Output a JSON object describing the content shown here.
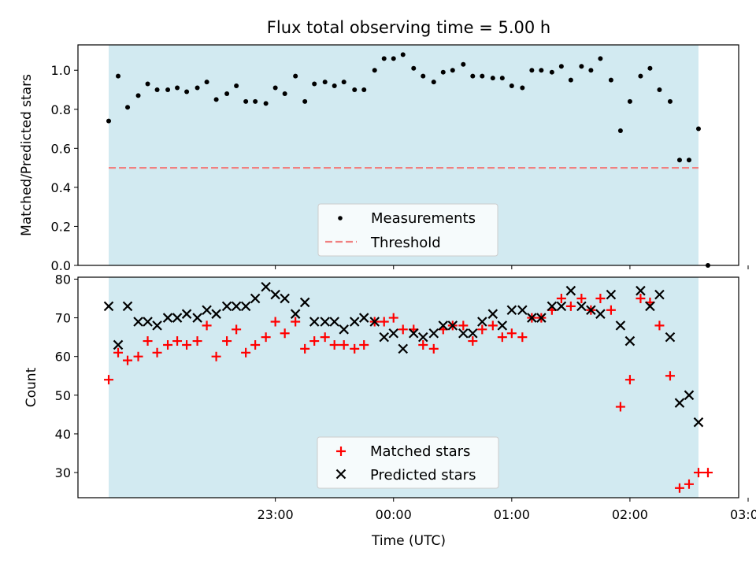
{
  "chart_data": [
    {
      "type": "scatter",
      "panel": "top",
      "title": "Flux total observing time = 5.00 h",
      "ylabel": "Matched/Predicted stars",
      "xlabel": "",
      "ylim": [
        0.0,
        1.13
      ],
      "yticks": [
        0.0,
        0.2,
        0.4,
        0.6,
        0.8,
        1.0
      ],
      "ytick_labels": [
        "0.0",
        "0.2",
        "0.4",
        "0.6",
        "0.8",
        "1.0"
      ],
      "xlim_hours": [
        -1.67,
        3.92
      ],
      "xticks_hours": [
        0,
        1,
        2,
        3,
        4,
        5
      ],
      "observing_window_hours": [
        -1.41,
        3.58
      ],
      "window_color": "#add8e6",
      "legend_position": "lower center",
      "series": [
        {
          "name": "Measurements",
          "marker": "dot",
          "color": "#000000",
          "x": [
            -1.41,
            -1.33,
            -1.25,
            -1.16,
            -1.08,
            -1.0,
            -0.91,
            -0.83,
            -0.75,
            -0.66,
            -0.58,
            -0.5,
            -0.41,
            -0.33,
            -0.25,
            -0.17,
            -0.08,
            0.0,
            0.08,
            0.17,
            0.25,
            0.33,
            0.42,
            0.5,
            0.58,
            0.67,
            0.75,
            0.84,
            0.92,
            1.0,
            1.08,
            1.17,
            1.25,
            1.34,
            1.42,
            1.5,
            1.59,
            1.67,
            1.75,
            1.84,
            1.92,
            2.0,
            2.09,
            2.17,
            2.25,
            2.34,
            2.42,
            2.5,
            2.59,
            2.67,
            2.75,
            2.84,
            2.92,
            3.0,
            3.09,
            3.17,
            3.25,
            3.34,
            3.42,
            3.5,
            3.58,
            3.66
          ],
          "y": [
            0.74,
            0.97,
            0.81,
            0.87,
            0.93,
            0.9,
            0.9,
            0.91,
            0.89,
            0.91,
            0.94,
            0.85,
            0.88,
            0.92,
            0.84,
            0.84,
            0.83,
            0.91,
            0.88,
            0.97,
            0.84,
            0.93,
            0.94,
            0.92,
            0.94,
            0.9,
            0.9,
            1.0,
            1.06,
            1.06,
            1.08,
            1.01,
            0.97,
            0.94,
            0.99,
            1.0,
            1.03,
            0.97,
            0.97,
            0.96,
            0.96,
            0.92,
            0.91,
            1.0,
            1.0,
            0.99,
            1.02,
            0.95,
            1.02,
            1.0,
            1.06,
            0.95,
            0.69,
            0.84,
            0.97,
            1.01,
            0.9,
            0.84,
            0.54,
            0.54,
            0.7,
            0.0
          ]
        },
        {
          "name": "Threshold",
          "type": "line",
          "style": "dashed",
          "color": "#f08080",
          "x": [
            -1.41,
            3.58
          ],
          "y": [
            0.5,
            0.5
          ]
        }
      ]
    },
    {
      "type": "scatter",
      "panel": "bottom",
      "ylabel": "Count",
      "xlabel": "Time (UTC)",
      "ylim": [
        23.5,
        80.5
      ],
      "yticks": [
        30,
        40,
        50,
        60,
        70,
        80
      ],
      "ytick_labels": [
        "30",
        "40",
        "50",
        "60",
        "70",
        "80"
      ],
      "xlim_hours": [
        -1.67,
        3.92
      ],
      "xticks_hours": [
        0,
        1,
        2,
        3,
        4,
        5
      ],
      "xtick_labels": [
        "23:00",
        "00:00",
        "01:00",
        "02:00",
        "03:00"
      ],
      "xtick_labels_hours": [
        0,
        1,
        2,
        3,
        4
      ],
      "observing_window_hours": [
        -1.41,
        3.58
      ],
      "window_color": "#add8e6",
      "legend_position": "lower center",
      "series": [
        {
          "name": "Matched stars",
          "marker": "plus",
          "color": "#ff0000",
          "x": [
            -1.41,
            -1.33,
            -1.25,
            -1.16,
            -1.08,
            -1.0,
            -0.91,
            -0.83,
            -0.75,
            -0.66,
            -0.58,
            -0.5,
            -0.41,
            -0.33,
            -0.25,
            -0.17,
            -0.08,
            0.0,
            0.08,
            0.17,
            0.25,
            0.33,
            0.42,
            0.5,
            0.58,
            0.67,
            0.75,
            0.84,
            0.92,
            1.0,
            1.08,
            1.17,
            1.25,
            1.34,
            1.42,
            1.5,
            1.59,
            1.67,
            1.75,
            1.84,
            1.92,
            2.0,
            2.09,
            2.17,
            2.25,
            2.34,
            2.42,
            2.5,
            2.59,
            2.67,
            2.75,
            2.84,
            2.92,
            3.0,
            3.09,
            3.17,
            3.25,
            3.34,
            3.42,
            3.5,
            3.58,
            3.66
          ],
          "y": [
            54,
            61,
            59,
            60,
            64,
            61,
            63,
            64,
            63,
            64,
            68,
            60,
            64,
            67,
            61,
            63,
            65,
            69,
            66,
            69,
            62,
            64,
            65,
            63,
            63,
            62,
            63,
            69,
            69,
            70,
            67,
            67,
            63,
            62,
            67,
            68,
            68,
            64,
            67,
            68,
            65,
            66,
            65,
            70,
            70,
            72,
            75,
            73,
            75,
            72,
            75,
            72,
            47,
            54,
            75,
            74,
            68,
            55,
            26,
            27,
            30,
            30
          ]
        },
        {
          "name": "Predicted stars",
          "marker": "x",
          "color": "#000000",
          "x": [
            -1.41,
            -1.33,
            -1.25,
            -1.16,
            -1.08,
            -1.0,
            -0.91,
            -0.83,
            -0.75,
            -0.66,
            -0.58,
            -0.5,
            -0.41,
            -0.33,
            -0.25,
            -0.17,
            -0.08,
            0.0,
            0.08,
            0.17,
            0.25,
            0.33,
            0.42,
            0.5,
            0.58,
            0.67,
            0.75,
            0.84,
            0.92,
            1.0,
            1.08,
            1.17,
            1.25,
            1.34,
            1.42,
            1.5,
            1.59,
            1.67,
            1.75,
            1.84,
            1.92,
            2.0,
            2.09,
            2.17,
            2.25,
            2.34,
            2.42,
            2.5,
            2.59,
            2.67,
            2.75,
            2.84,
            2.92,
            3.0,
            3.09,
            3.17,
            3.25,
            3.34,
            3.42,
            3.5,
            3.58
          ],
          "y": [
            73,
            63,
            73,
            69,
            69,
            68,
            70,
            70,
            71,
            70,
            72,
            71,
            73,
            73,
            73,
            75,
            78,
            76,
            75,
            71,
            74,
            69,
            69,
            69,
            67,
            69,
            70,
            69,
            65,
            66,
            62,
            66,
            65,
            66,
            68,
            68,
            66,
            66,
            69,
            71,
            68,
            72,
            72,
            70,
            70,
            73,
            73,
            77,
            73,
            72,
            71,
            76,
            68,
            64,
            77,
            73,
            76,
            65,
            48,
            50,
            43
          ]
        }
      ]
    }
  ]
}
